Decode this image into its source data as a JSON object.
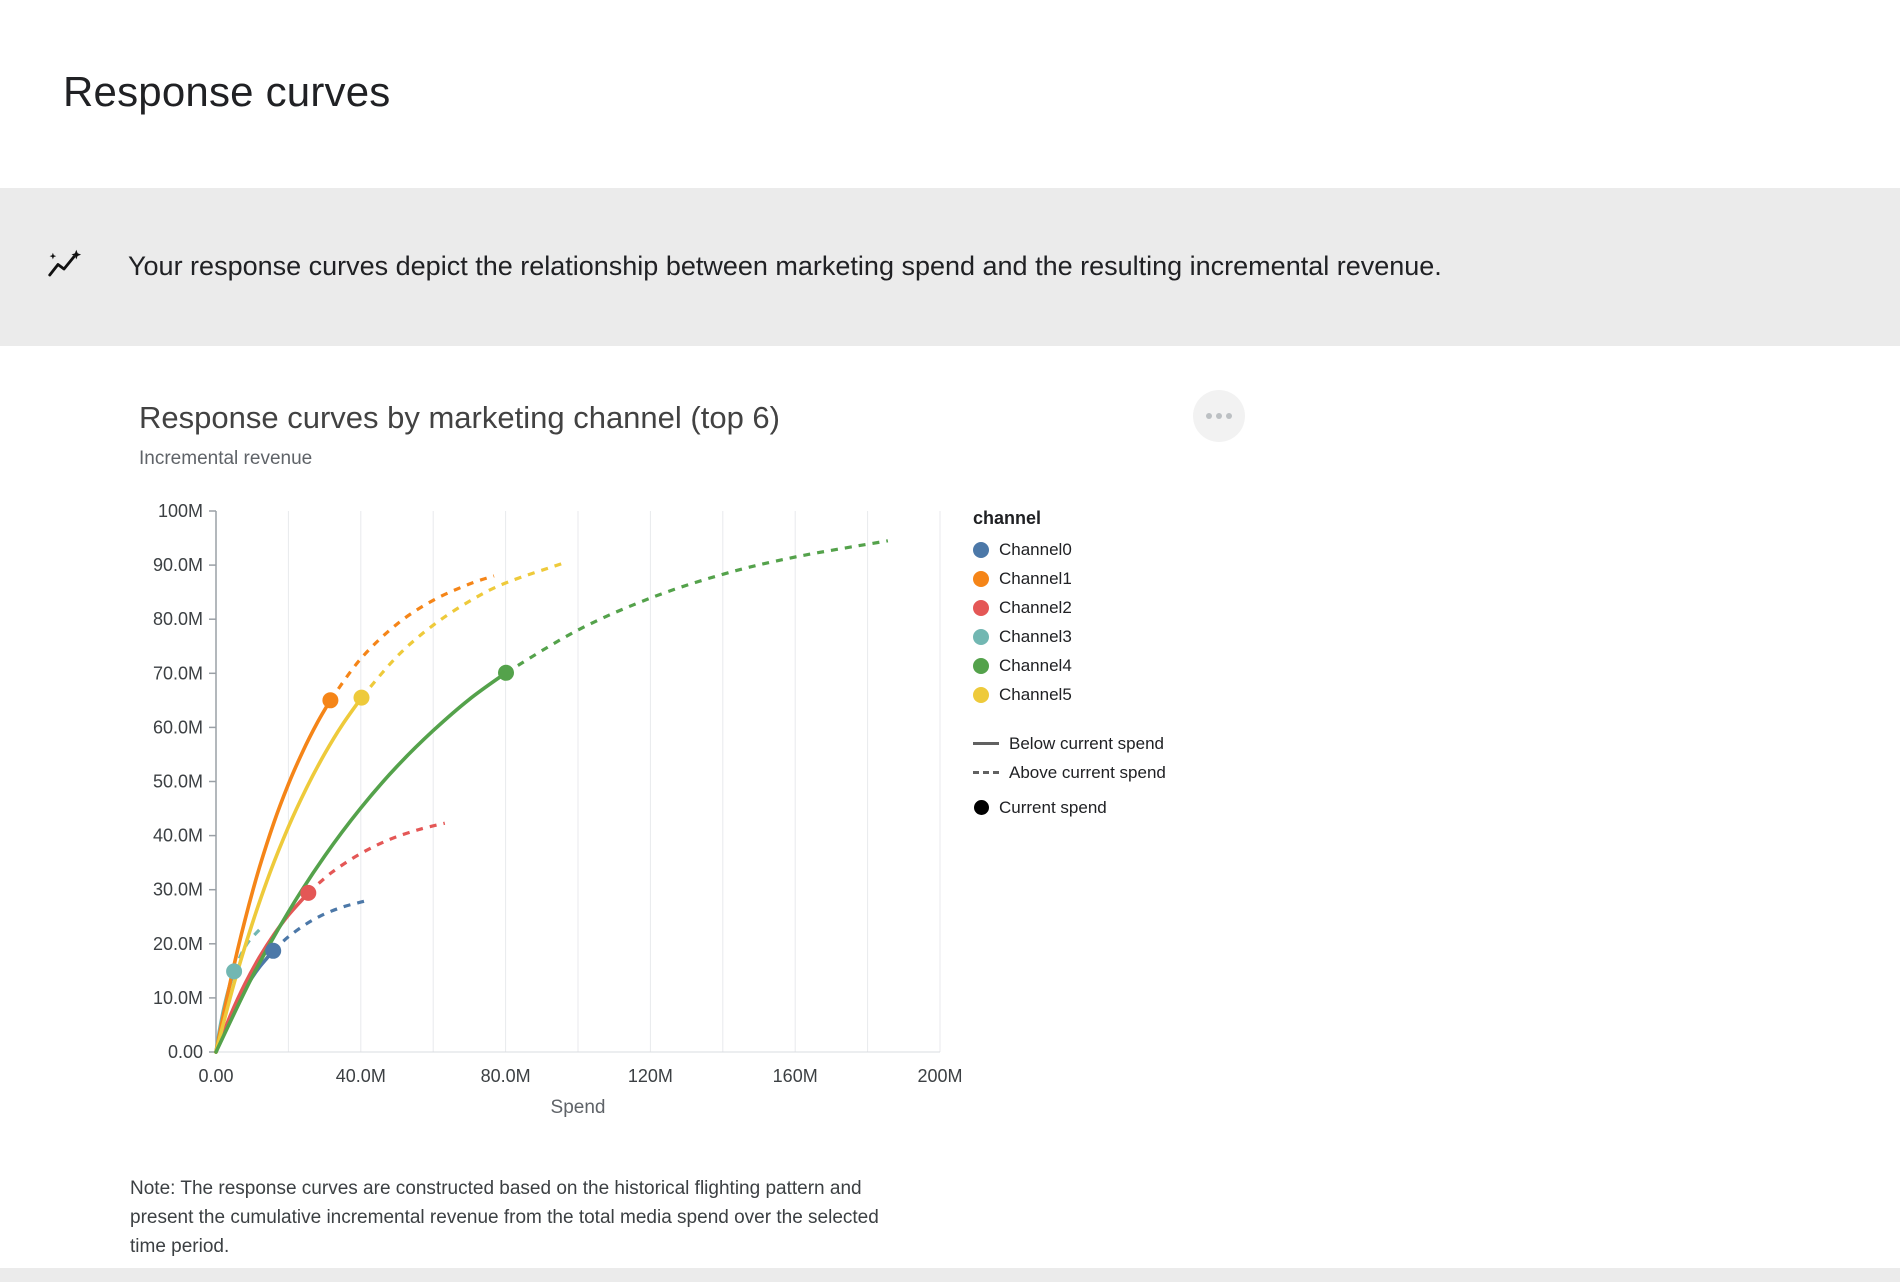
{
  "page": {
    "title": "Response curves",
    "banner": {
      "icon": "insights-icon",
      "text": "Your response curves depict the relationship between marketing spend and the resulting incremental revenue."
    }
  },
  "chart": {
    "title": "Response curves by marketing channel (top 6)",
    "note": "Note: The response curves are constructed based on the historical flighting pattern and present the cumulative incremental revenue from the total media spend over the selected time period."
  },
  "chart_data": {
    "type": "line",
    "title": "Response curves by marketing channel (top 6)",
    "xlabel": "Spend",
    "ylabel": "Incremental revenue",
    "value_unit": "millions",
    "xlim": [
      0,
      200
    ],
    "ylim": [
      0,
      100
    ],
    "grid": "vertical",
    "legend_position": "right",
    "legend_title": "channel",
    "x_ticks": [
      {
        "value": 0,
        "label": "0.00"
      },
      {
        "value": 40,
        "label": "40.0M"
      },
      {
        "value": 80,
        "label": "80.0M"
      },
      {
        "value": 120,
        "label": "120M"
      },
      {
        "value": 160,
        "label": "160M"
      },
      {
        "value": 200,
        "label": "200M"
      }
    ],
    "y_ticks": [
      {
        "value": 0,
        "label": "0.00"
      },
      {
        "value": 10,
        "label": "10.0M"
      },
      {
        "value": 20,
        "label": "20.0M"
      },
      {
        "value": 30,
        "label": "30.0M"
      },
      {
        "value": 40,
        "label": "40.0M"
      },
      {
        "value": 50,
        "label": "50.0M"
      },
      {
        "value": 60,
        "label": "60.0M"
      },
      {
        "value": 70,
        "label": "70.0M"
      },
      {
        "value": 80,
        "label": "80.0M"
      },
      {
        "value": 90,
        "label": "90.0M"
      },
      {
        "value": 100,
        "label": "100M"
      }
    ],
    "style_legend": [
      {
        "style": "solid",
        "label": "Below current spend"
      },
      {
        "style": "dashed",
        "label": "Above current spend"
      },
      {
        "style": "dot",
        "label": "Current spend"
      }
    ],
    "series": [
      {
        "name": "Channel0",
        "color": "#4C78A8",
        "current_spend": {
          "x": 15.8,
          "y": 18.7
        },
        "solid": [
          [
            0,
            0
          ],
          [
            2,
            3.4
          ],
          [
            4,
            6.5
          ],
          [
            6,
            9.2
          ],
          [
            8,
            11.6
          ],
          [
            10,
            13.8
          ],
          [
            12,
            15.7
          ],
          [
            14,
            17.3
          ],
          [
            15.8,
            18.7
          ]
        ],
        "dashed": [
          [
            15.8,
            18.7
          ],
          [
            20,
            21.3
          ],
          [
            25,
            23.7
          ],
          [
            30,
            25.5
          ],
          [
            35,
            26.8
          ],
          [
            40,
            27.7
          ],
          [
            42.4,
            28.1
          ]
        ]
      },
      {
        "name": "Channel1",
        "color": "#F58518",
        "current_spend": {
          "x": 31.6,
          "y": 65.0
        },
        "solid": [
          [
            0,
            0
          ],
          [
            4,
            13.1
          ],
          [
            8,
            24.4
          ],
          [
            12,
            34.1
          ],
          [
            16,
            42.4
          ],
          [
            20,
            49.5
          ],
          [
            24,
            55.6
          ],
          [
            28,
            60.9
          ],
          [
            31.6,
            65.0
          ]
        ],
        "dashed": [
          [
            31.6,
            65.0
          ],
          [
            40,
            72.7
          ],
          [
            50,
            79.1
          ],
          [
            60,
            83.5
          ],
          [
            70,
            86.5
          ],
          [
            76.8,
            88.0
          ]
        ]
      },
      {
        "name": "Channel2",
        "color": "#E45756",
        "current_spend": {
          "x": 25.5,
          "y": 29.4
        },
        "solid": [
          [
            0,
            0
          ],
          [
            4,
            6.8
          ],
          [
            8,
            12.6
          ],
          [
            12,
            17.5
          ],
          [
            16,
            21.7
          ],
          [
            20,
            25.3
          ],
          [
            25.5,
            29.4
          ]
        ],
        "dashed": [
          [
            25.5,
            29.4
          ],
          [
            32,
            33.2
          ],
          [
            40,
            36.7
          ],
          [
            48,
            39.3
          ],
          [
            56,
            41.1
          ],
          [
            63.2,
            42.3
          ]
        ]
      },
      {
        "name": "Channel3",
        "color": "#72B7B2",
        "current_spend": {
          "x": 5.0,
          "y": 14.9
        },
        "solid": [
          [
            0,
            0
          ],
          [
            1,
            4.1
          ],
          [
            2,
            7.5
          ],
          [
            3,
            10.4
          ],
          [
            4,
            12.8
          ],
          [
            5,
            14.9
          ]
        ],
        "dashed": [
          [
            5,
            14.9
          ],
          [
            7,
            18.1
          ],
          [
            9,
            20.4
          ],
          [
            12,
            22.6
          ]
        ]
      },
      {
        "name": "Channel4",
        "color": "#54A24B",
        "current_spend": {
          "x": 80.1,
          "y": 70.1
        },
        "solid": [
          [
            0,
            0
          ],
          [
            10,
            13.9
          ],
          [
            20,
            25.9
          ],
          [
            30,
            36.2
          ],
          [
            40,
            45.1
          ],
          [
            50,
            52.8
          ],
          [
            60,
            59.4
          ],
          [
            70,
            65.2
          ],
          [
            80.1,
            70.1
          ]
        ],
        "dashed": [
          [
            80.1,
            70.1
          ],
          [
            100,
            78.0
          ],
          [
            120,
            83.9
          ],
          [
            140,
            88.3
          ],
          [
            160,
            91.5
          ],
          [
            185.6,
            94.5
          ]
        ]
      },
      {
        "name": "Channel5",
        "color": "#EECA3B",
        "current_spend": {
          "x": 40.2,
          "y": 65.5
        },
        "solid": [
          [
            0,
            0
          ],
          [
            5,
            12.7
          ],
          [
            10,
            23.7
          ],
          [
            15,
            33.3
          ],
          [
            20,
            41.6
          ],
          [
            25,
            48.8
          ],
          [
            30,
            55.1
          ],
          [
            35,
            60.6
          ],
          [
            40.2,
            65.5
          ]
        ],
        "dashed": [
          [
            40.2,
            65.5
          ],
          [
            50,
            73.1
          ],
          [
            60,
            78.9
          ],
          [
            70,
            83.3
          ],
          [
            80,
            86.7
          ],
          [
            96.6,
            90.5
          ]
        ]
      }
    ]
  }
}
